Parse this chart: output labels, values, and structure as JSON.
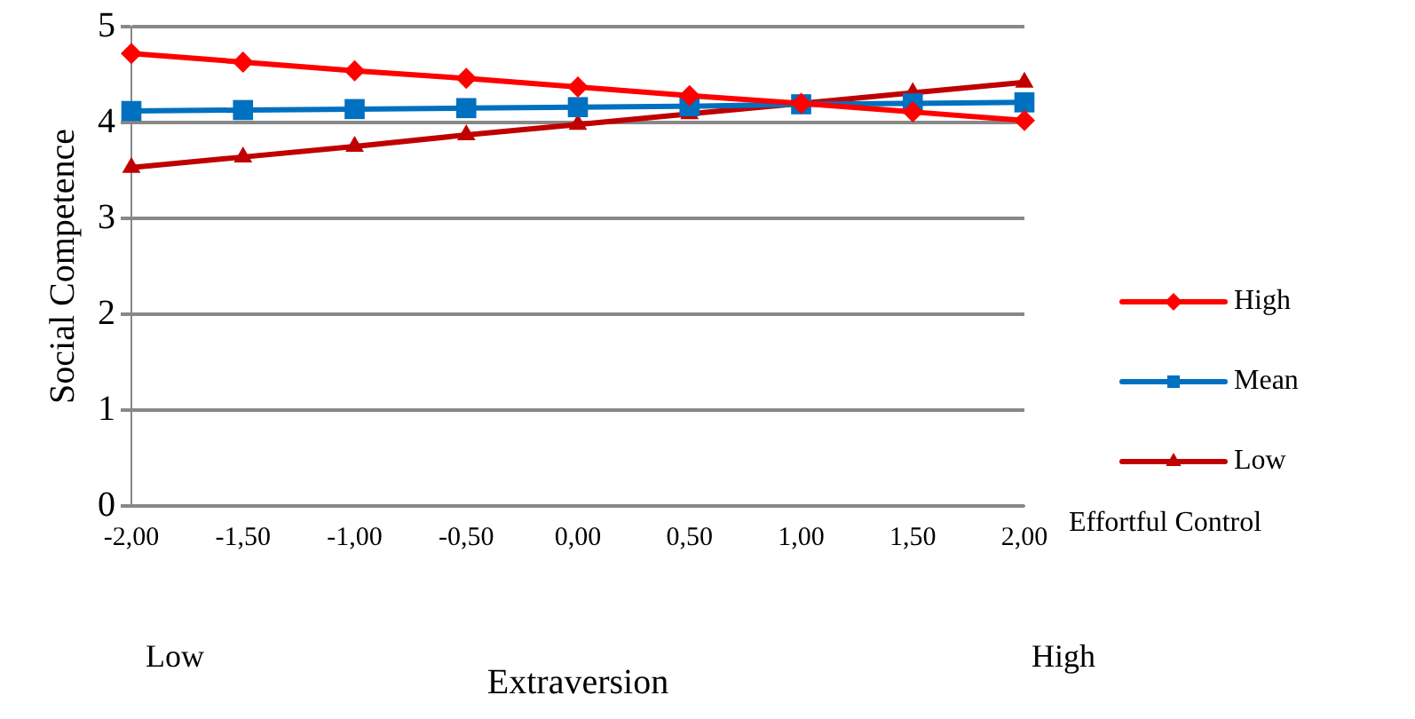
{
  "chart_data": {
    "type": "line",
    "ylabel": "Social Competence",
    "xlabel": "Extraversion",
    "legend_title": "Effortful Control",
    "legend": "right",
    "grid": "y",
    "annotations": [
      "Low",
      "High"
    ],
    "categories": [
      "-2,00",
      "-1,50",
      "-1,00",
      "-0,50",
      "0,00",
      "0,50",
      "1,00",
      "1,50",
      "2,00"
    ],
    "ylim": [
      0,
      5
    ],
    "yticks": [
      0,
      1,
      2,
      3,
      4,
      5
    ],
    "series": [
      {
        "name": "High",
        "color": "#ff0000",
        "marker": "diamond",
        "values": [
          4.72,
          4.63,
          4.54,
          4.46,
          4.37,
          4.28,
          4.2,
          4.11,
          4.02
        ]
      },
      {
        "name": "Mean",
        "color": "#0070c0",
        "marker": "square",
        "values": [
          4.12,
          4.13,
          4.14,
          4.15,
          4.16,
          4.17,
          4.19,
          4.2,
          4.21
        ]
      },
      {
        "name": "Low",
        "color": "#c00000",
        "marker": "triangle",
        "values": [
          3.53,
          3.64,
          3.75,
          3.87,
          3.98,
          4.09,
          4.2,
          4.31,
          4.42
        ]
      }
    ]
  }
}
